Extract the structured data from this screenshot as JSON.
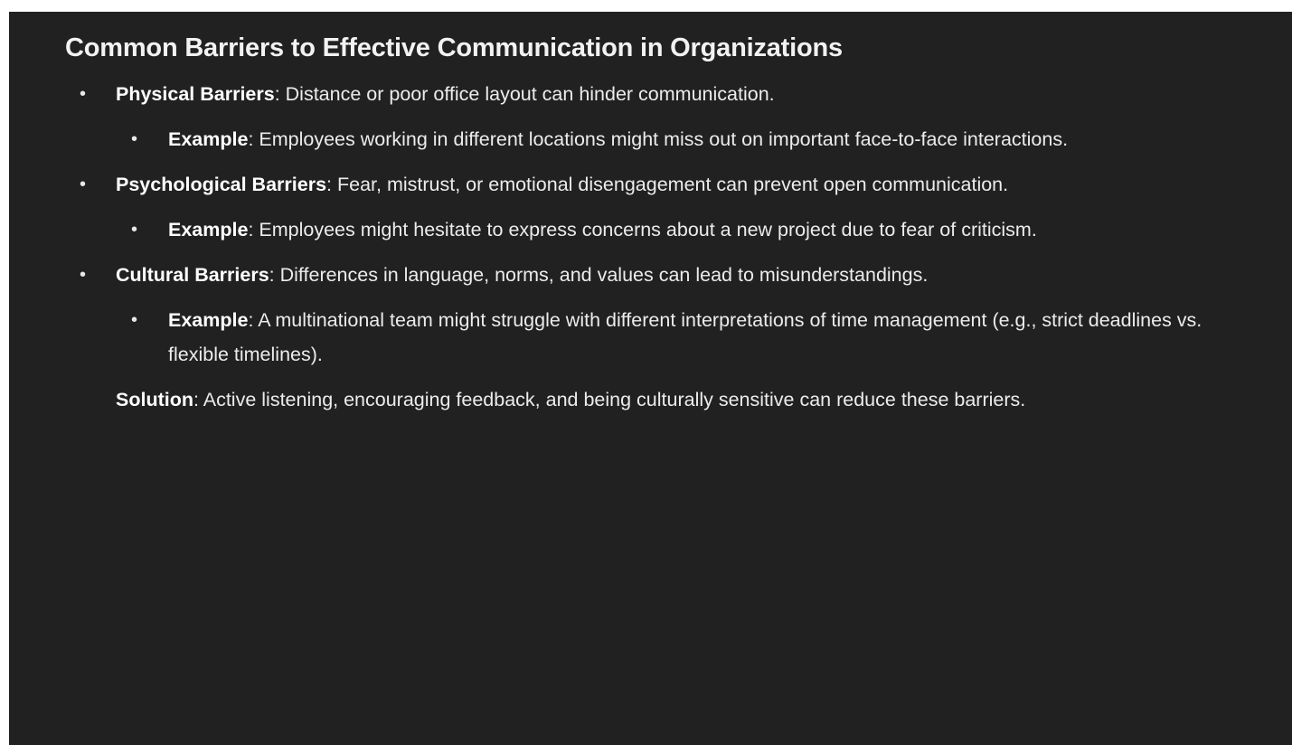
{
  "heading": "Common Barriers to Effective Communication in Organizations",
  "items": [
    {
      "title": "Physical Barriers",
      "text": ": Distance or poor office layout can hinder communication.",
      "example_label": "Example",
      "example_text": ": Employees working in different locations might miss out on important face-to-face interactions."
    },
    {
      "title": "Psychological Barriers",
      "text": ": Fear, mistrust, or emotional disengagement can prevent open communication.",
      "example_label": "Example",
      "example_text": ": Employees might hesitate to express concerns about a new project due to fear of criticism."
    },
    {
      "title": "Cultural Barriers",
      "text": ": Differences in language, norms, and values can lead to misunderstandings.",
      "example_label": "Example",
      "example_text": ": A multinational team might struggle with different interpretations of time management (e.g., strict deadlines vs. flexible timelines)."
    }
  ],
  "solution": {
    "label": "Solution",
    "text": ": Active listening, encouraging feedback, and being culturally sensitive can reduce these barriers."
  },
  "bullet_glyph": "•"
}
